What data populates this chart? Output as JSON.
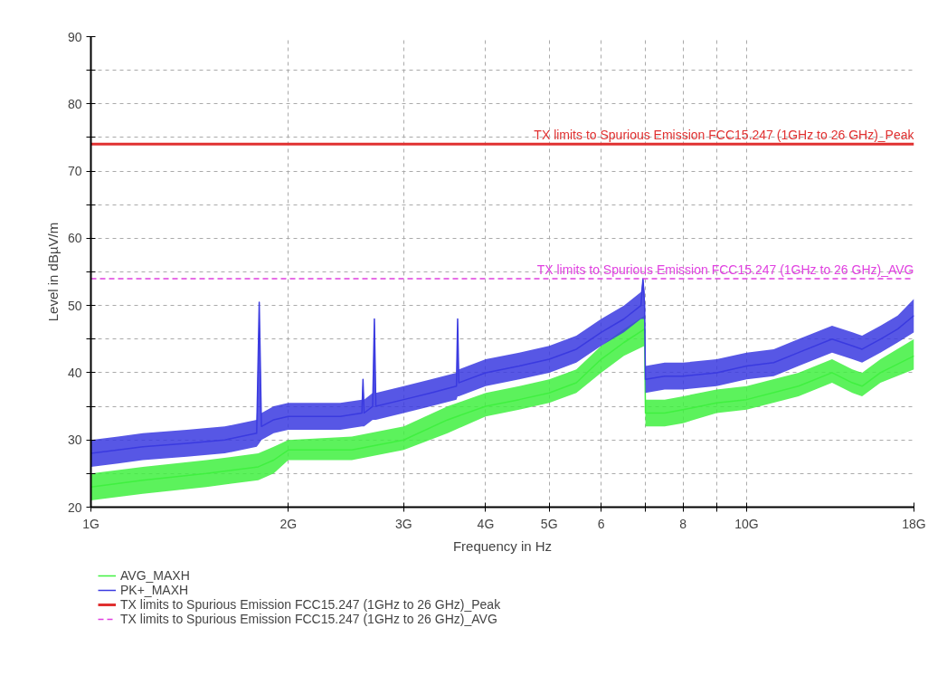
{
  "chart_data": {
    "type": "line",
    "xlabel": "Frequency in Hz",
    "ylabel": "Level in dBµV/m",
    "log": "x",
    "grid": true,
    "legend": "bottom",
    "line_style": "solid",
    "marker": "none",
    "xlim": [
      1,
      18
    ],
    "xticks": [
      {
        "value": 1,
        "label": "1G"
      },
      {
        "value": 2,
        "label": "2G"
      },
      {
        "value": 3,
        "label": "3G"
      },
      {
        "value": 4,
        "label": "4G"
      },
      {
        "value": 5,
        "label": "5G"
      },
      6,
      {
        "value": 7,
        "label": null
      },
      8,
      {
        "value": 9,
        "label": null
      },
      {
        "value": 10,
        "label": "10G"
      },
      {
        "value": 18,
        "label": "18G"
      }
    ],
    "ylim": [
      20,
      90
    ],
    "yticks": [
      20,
      {
        "value": 25,
        "label": null
      },
      30,
      {
        "value": 35,
        "label": null
      },
      40,
      {
        "value": 45,
        "label": null
      },
      50,
      {
        "value": 55,
        "label": null
      },
      60,
      {
        "value": 65,
        "label": null
      },
      70,
      {
        "value": 75,
        "label": null
      },
      80,
      {
        "value": 85,
        "label": null
      },
      90
    ],
    "series": [
      {
        "name": "AVG_MAXH",
        "color": "#40f040",
        "x": [
          1.0,
          1.2,
          1.5,
          1.8,
          1.9,
          2.0,
          2.5,
          3.0,
          3.5,
          4.0,
          4.5,
          5.0,
          5.5,
          6.0,
          6.5,
          6.99,
          7.01,
          7.5,
          8.0,
          9.0,
          10.0,
          12.0,
          13.5,
          14.5,
          15.0,
          16.0,
          18.0
        ],
        "values": [
          23,
          24,
          25,
          26,
          27,
          28.5,
          28.5,
          30,
          33,
          35,
          36,
          37,
          38.5,
          42,
          44.5,
          46.5,
          34,
          34,
          34.5,
          35.5,
          36,
          38,
          40,
          38.5,
          38,
          40,
          42.5
        ],
        "lower": [
          21,
          22,
          23,
          24,
          25,
          27,
          27,
          28.5,
          31,
          33.5,
          34.5,
          35.5,
          37,
          40,
          42.5,
          44,
          32,
          32,
          32.5,
          34,
          34.5,
          36.5,
          38.5,
          37,
          36.5,
          38.5,
          40.5
        ],
        "upper": [
          25,
          26,
          27,
          28,
          29,
          30,
          30.5,
          32,
          35,
          37,
          38,
          39,
          40.5,
          44,
          46.5,
          48.5,
          36,
          36,
          36.5,
          37.5,
          38,
          40,
          42,
          40.5,
          40,
          42,
          45
        ]
      },
      {
        "name": "PK+_MAXH",
        "color": "#3a3ae0",
        "x": [
          1.0,
          1.1,
          1.2,
          1.4,
          1.6,
          1.79,
          1.806,
          1.82,
          1.9,
          2.0,
          2.2,
          2.4,
          2.59,
          2.6,
          2.61,
          2.69,
          2.706,
          2.72,
          3.0,
          3.3,
          3.61,
          3.625,
          3.64,
          4.0,
          4.5,
          5.0,
          5.5,
          6.0,
          6.5,
          6.9,
          6.95,
          6.99,
          7.01,
          7.5,
          8.0,
          9.0,
          10.0,
          11.0,
          12.0,
          13.5,
          14.5,
          15.0,
          16.0,
          17.0,
          18.0
        ],
        "values": [
          28,
          28.5,
          29,
          29.5,
          30,
          31,
          50.5,
          32,
          33,
          33.5,
          33.5,
          33.5,
          34,
          39,
          34,
          35,
          48,
          35,
          36,
          37,
          38,
          48,
          38.5,
          40,
          41,
          42,
          43.5,
          46,
          48,
          50,
          54,
          50,
          39,
          39.5,
          39.5,
          40,
          41,
          41.5,
          43,
          45,
          44,
          43.5,
          45,
          46.5,
          48.5
        ],
        "lower": [
          26,
          26.5,
          27,
          27.5,
          28,
          29,
          29.5,
          30,
          31,
          31.5,
          31.5,
          31.5,
          32,
          32,
          32,
          33,
          33,
          33,
          34,
          35,
          36,
          36.5,
          36.5,
          38,
          39,
          40,
          41.5,
          44,
          46,
          48,
          48,
          48,
          37,
          37.5,
          37.5,
          38,
          39,
          39.5,
          41,
          43,
          42,
          41.5,
          43,
          44.5,
          46
        ],
        "upper": [
          30,
          30.5,
          31,
          31.5,
          32,
          33,
          50.5,
          34,
          35,
          35.5,
          35.5,
          35.5,
          36,
          39,
          36,
          37,
          48,
          37,
          38,
          39,
          40,
          48,
          40.5,
          42,
          43,
          44,
          45.5,
          48,
          50,
          52,
          54,
          52,
          41,
          41.5,
          41.5,
          42,
          43,
          43.5,
          45,
          47,
          46,
          45.5,
          47,
          48.5,
          51
        ]
      }
    ],
    "ref_lines": [
      {
        "axis": "y",
        "value": 74,
        "label": "TX limits to Spurious Emission FCC15.247 (1GHz to 26 GHz)_Peak",
        "color": "#e03030",
        "line_style": "solid"
      },
      {
        "axis": "y",
        "value": 54,
        "label": "TX limits to Spurious Emission FCC15.247 (1GHz to 26 GHz)_AVG",
        "color": "#e040e0",
        "line_style": "dashed"
      }
    ]
  }
}
